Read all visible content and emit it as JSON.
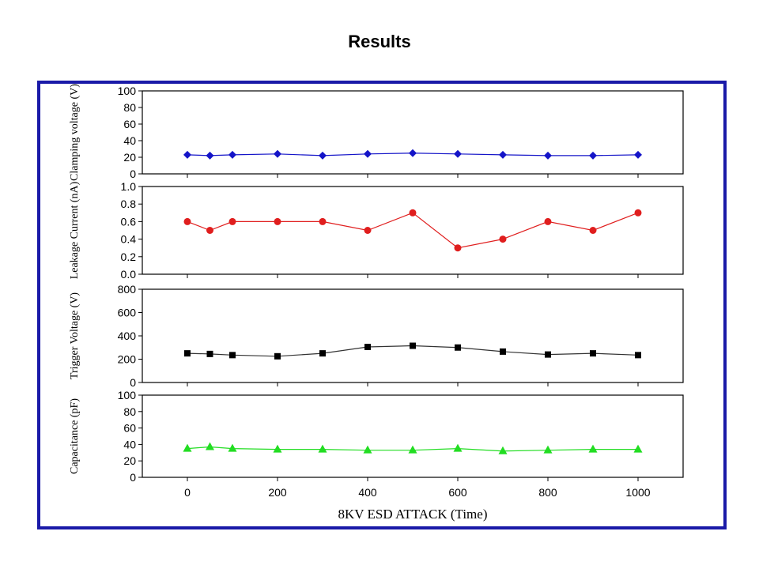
{
  "page": {
    "title": "Results"
  },
  "chart_data": {
    "type": "line",
    "xlabel": "8KV ESD ATTACK (Time)",
    "x_ticks": [
      0,
      200,
      400,
      600,
      800,
      1000
    ],
    "xlim": [
      -100,
      1100
    ],
    "x": [
      0,
      50,
      100,
      200,
      300,
      400,
      500,
      600,
      700,
      800,
      900,
      1000
    ],
    "panels": [
      {
        "ylabel": "Clamping voltage (V)",
        "ylim": [
          0,
          100
        ],
        "yticks": [
          "0",
          "20",
          "40",
          "60",
          "80",
          "100"
        ],
        "color": "#1414c8",
        "marker": "diamond",
        "values": [
          23,
          22,
          23,
          24,
          22,
          24,
          25,
          24,
          23,
          22,
          22,
          23
        ]
      },
      {
        "ylabel": "Leakage Current (nA)",
        "ylim": [
          0,
          1.0
        ],
        "yticks": [
          "0.0",
          "0.2",
          "0.4",
          "0.6",
          "0.8",
          "1.0"
        ],
        "color": "#e01e1e",
        "marker": "circle",
        "values": [
          0.6,
          0.5,
          0.6,
          0.6,
          0.6,
          0.5,
          0.7,
          0.3,
          0.4,
          0.6,
          0.5,
          0.7
        ]
      },
      {
        "ylabel": "Trigger Voltage (V)",
        "ylim": [
          0,
          800
        ],
        "yticks": [
          "0",
          "200",
          "400",
          "600",
          "800"
        ],
        "color": "#000000",
        "marker": "square",
        "values": [
          250,
          245,
          235,
          225,
          250,
          305,
          315,
          300,
          265,
          240,
          250,
          235
        ]
      },
      {
        "ylabel": "Capacitance (pF)",
        "ylim": [
          0,
          100
        ],
        "yticks": [
          "0",
          "20",
          "40",
          "60",
          "80",
          "100"
        ],
        "color": "#22dd22",
        "marker": "triangle",
        "values": [
          35,
          37,
          35,
          34,
          34,
          33,
          33,
          35,
          32,
          33,
          34,
          34
        ]
      }
    ]
  }
}
